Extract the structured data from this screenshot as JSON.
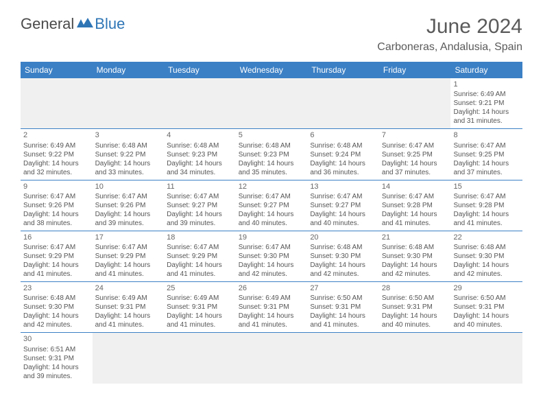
{
  "logo": {
    "text1": "General",
    "text2": "Blue"
  },
  "title": "June 2024",
  "location": "Carboneras, Andalusia, Spain",
  "header_bg": "#3b7fc4",
  "days_of_week": [
    "Sunday",
    "Monday",
    "Tuesday",
    "Wednesday",
    "Thursday",
    "Friday",
    "Saturday"
  ],
  "weeks": [
    [
      null,
      null,
      null,
      null,
      null,
      null,
      {
        "d": "1",
        "sr": "6:49 AM",
        "ss": "9:21 PM",
        "dl": "14 hours and 31 minutes."
      }
    ],
    [
      {
        "d": "2",
        "sr": "6:49 AM",
        "ss": "9:22 PM",
        "dl": "14 hours and 32 minutes."
      },
      {
        "d": "3",
        "sr": "6:48 AM",
        "ss": "9:22 PM",
        "dl": "14 hours and 33 minutes."
      },
      {
        "d": "4",
        "sr": "6:48 AM",
        "ss": "9:23 PM",
        "dl": "14 hours and 34 minutes."
      },
      {
        "d": "5",
        "sr": "6:48 AM",
        "ss": "9:23 PM",
        "dl": "14 hours and 35 minutes."
      },
      {
        "d": "6",
        "sr": "6:48 AM",
        "ss": "9:24 PM",
        "dl": "14 hours and 36 minutes."
      },
      {
        "d": "7",
        "sr": "6:47 AM",
        "ss": "9:25 PM",
        "dl": "14 hours and 37 minutes."
      },
      {
        "d": "8",
        "sr": "6:47 AM",
        "ss": "9:25 PM",
        "dl": "14 hours and 37 minutes."
      }
    ],
    [
      {
        "d": "9",
        "sr": "6:47 AM",
        "ss": "9:26 PM",
        "dl": "14 hours and 38 minutes."
      },
      {
        "d": "10",
        "sr": "6:47 AM",
        "ss": "9:26 PM",
        "dl": "14 hours and 39 minutes."
      },
      {
        "d": "11",
        "sr": "6:47 AM",
        "ss": "9:27 PM",
        "dl": "14 hours and 39 minutes."
      },
      {
        "d": "12",
        "sr": "6:47 AM",
        "ss": "9:27 PM",
        "dl": "14 hours and 40 minutes."
      },
      {
        "d": "13",
        "sr": "6:47 AM",
        "ss": "9:27 PM",
        "dl": "14 hours and 40 minutes."
      },
      {
        "d": "14",
        "sr": "6:47 AM",
        "ss": "9:28 PM",
        "dl": "14 hours and 41 minutes."
      },
      {
        "d": "15",
        "sr": "6:47 AM",
        "ss": "9:28 PM",
        "dl": "14 hours and 41 minutes."
      }
    ],
    [
      {
        "d": "16",
        "sr": "6:47 AM",
        "ss": "9:29 PM",
        "dl": "14 hours and 41 minutes."
      },
      {
        "d": "17",
        "sr": "6:47 AM",
        "ss": "9:29 PM",
        "dl": "14 hours and 41 minutes."
      },
      {
        "d": "18",
        "sr": "6:47 AM",
        "ss": "9:29 PM",
        "dl": "14 hours and 41 minutes."
      },
      {
        "d": "19",
        "sr": "6:47 AM",
        "ss": "9:30 PM",
        "dl": "14 hours and 42 minutes."
      },
      {
        "d": "20",
        "sr": "6:48 AM",
        "ss": "9:30 PM",
        "dl": "14 hours and 42 minutes."
      },
      {
        "d": "21",
        "sr": "6:48 AM",
        "ss": "9:30 PM",
        "dl": "14 hours and 42 minutes."
      },
      {
        "d": "22",
        "sr": "6:48 AM",
        "ss": "9:30 PM",
        "dl": "14 hours and 42 minutes."
      }
    ],
    [
      {
        "d": "23",
        "sr": "6:48 AM",
        "ss": "9:30 PM",
        "dl": "14 hours and 42 minutes."
      },
      {
        "d": "24",
        "sr": "6:49 AM",
        "ss": "9:31 PM",
        "dl": "14 hours and 41 minutes."
      },
      {
        "d": "25",
        "sr": "6:49 AM",
        "ss": "9:31 PM",
        "dl": "14 hours and 41 minutes."
      },
      {
        "d": "26",
        "sr": "6:49 AM",
        "ss": "9:31 PM",
        "dl": "14 hours and 41 minutes."
      },
      {
        "d": "27",
        "sr": "6:50 AM",
        "ss": "9:31 PM",
        "dl": "14 hours and 41 minutes."
      },
      {
        "d": "28",
        "sr": "6:50 AM",
        "ss": "9:31 PM",
        "dl": "14 hours and 40 minutes."
      },
      {
        "d": "29",
        "sr": "6:50 AM",
        "ss": "9:31 PM",
        "dl": "14 hours and 40 minutes."
      }
    ],
    [
      {
        "d": "30",
        "sr": "6:51 AM",
        "ss": "9:31 PM",
        "dl": "14 hours and 39 minutes."
      },
      null,
      null,
      null,
      null,
      null,
      null
    ]
  ],
  "labels": {
    "sunrise": "Sunrise:",
    "sunset": "Sunset:",
    "daylight": "Daylight:"
  }
}
